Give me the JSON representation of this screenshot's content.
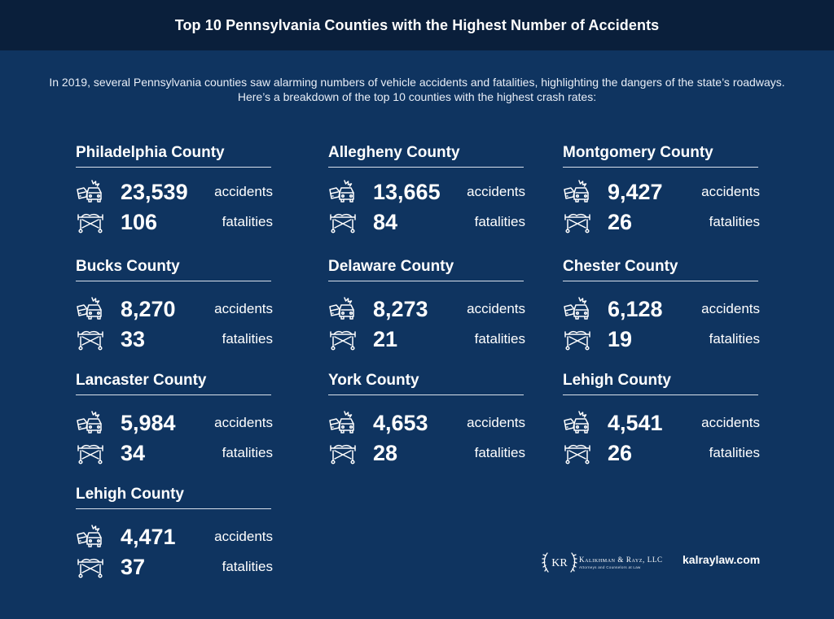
{
  "header": {
    "title": "Top 10 Pennsylvania Counties with the Highest Number of Accidents"
  },
  "intro": {
    "line1": "In 2019, several Pennsylvania counties saw alarming numbers of vehicle accidents and fatalities, highlighting the dangers of the state’s roadways.",
    "line2": "Here’s a breakdown of the top 10 counties with the highest crash rates:"
  },
  "labels": {
    "accidents": "accidents",
    "fatalities": "fatalities"
  },
  "icons": {
    "accidents": "car-crash-icon",
    "fatalities": "stretcher-icon"
  },
  "counties": [
    {
      "name": "Philadelphia County",
      "accidents": "23,539",
      "fatalities": "106"
    },
    {
      "name": "Allegheny County",
      "accidents": "13,665",
      "fatalities": "84"
    },
    {
      "name": "Montgomery County",
      "accidents": "9,427",
      "fatalities": "26"
    },
    {
      "name": "Bucks County",
      "accidents": "8,270",
      "fatalities": "33"
    },
    {
      "name": "Delaware County",
      "accidents": "8,273",
      "fatalities": "21"
    },
    {
      "name": "Chester County",
      "accidents": "6,128",
      "fatalities": "19"
    },
    {
      "name": "Lancaster County",
      "accidents": "5,984",
      "fatalities": "34"
    },
    {
      "name": "York County",
      "accidents": "4,653",
      "fatalities": "28"
    },
    {
      "name": "Lehigh County",
      "accidents": "4,541",
      "fatalities": "26"
    },
    {
      "name": "Lehigh County",
      "accidents": "4,471",
      "fatalities": "37"
    }
  ],
  "footer": {
    "logo_mark": "KR",
    "firm_name": "Kalikhman & Rayz, LLC",
    "firm_tagline": "Attorneys and Counselors at Law",
    "website": "kalraylaw.com"
  },
  "colors": {
    "background": "#0f3460",
    "header": "#0a1f3b",
    "text": "#ffffff"
  }
}
